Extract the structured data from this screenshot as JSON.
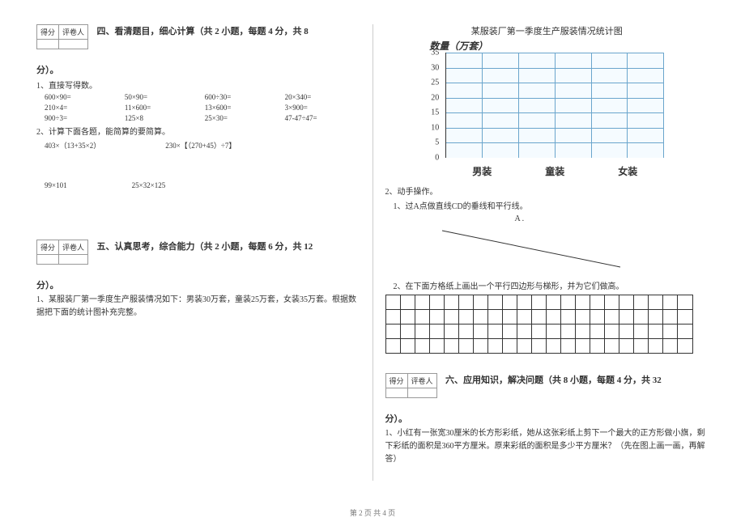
{
  "scoreHeaders": {
    "score": "得分",
    "grader": "评卷人"
  },
  "section4": {
    "title": "四、看清题目，细心计算（共 2 小题，每题 4 分，共 8",
    "title2": "分）。",
    "q1": "1、直接写得数。",
    "calc": [
      "600×90=",
      "50×90=",
      "600÷30=",
      "20×340=",
      "210×4=",
      "11×600=",
      "13×600=",
      "3×900=",
      "900÷3=",
      "125×8",
      "25×30=",
      "47-47÷47="
    ],
    "q2": "2、计算下面各题，能简算的要简算。",
    "exprA": [
      "403×（13+35×2）",
      "230×【（270+45）÷7】"
    ],
    "exprB": [
      "99×101",
      "25×32×125"
    ]
  },
  "section5": {
    "title": "五、认真思考，综合能力（共 2 小题，每题 6 分，共 12",
    "title2": "分）。",
    "q1": "1、某服装厂第一季度生产服装情况如下：男装30万套，童装25万套，女装35万套。根据数据把下面的统计图补充完整。"
  },
  "chart": {
    "title": "某服装厂第一季度生产服装情况统计图",
    "ylabel": "数量（万套）",
    "yticks": [
      "35",
      "30",
      "25",
      "20",
      "15",
      "10",
      "5",
      "0"
    ],
    "xlabels": [
      "男装",
      "童装",
      "女装"
    ],
    "rows": 7,
    "cols": 6,
    "grid_color": "#6aa5cc",
    "cell_bg": "#f5fbff"
  },
  "section5b": {
    "q2": "2、动手操作。",
    "sub1": "1、过A点做直线CD的垂线和平行线。",
    "pointA": "A .",
    "sub2": "2、在下面方格纸上画出一个平行四边形与梯形，并为它们做高。",
    "gridRows": 4,
    "gridCols": 21
  },
  "section6": {
    "title": "六、应用知识，解决问题（共 8 小题，每题 4 分，共 32",
    "title2": "分）。",
    "q1": "1、小红有一张宽30厘米的长方形彩纸，她从这张彩纸上剪下一个最大的正方形做小旗，剩下彩纸的面积是360平方厘米。原来彩纸的面积是多少平方厘米？（先在图上画一画，再解答）"
  },
  "footer": "第 2 页  共 4 页"
}
